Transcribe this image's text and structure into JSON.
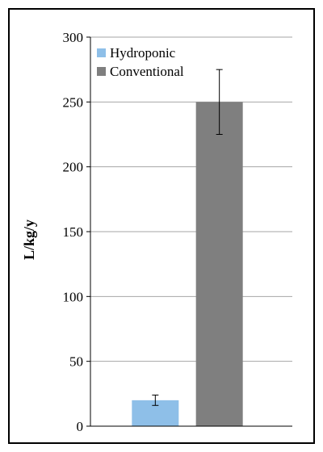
{
  "chart_data": {
    "type": "bar",
    "title": "",
    "xlabel": "",
    "ylabel": "L/kg/y",
    "ylim": [
      0,
      300
    ],
    "yticks": [
      0,
      50,
      100,
      150,
      200,
      250,
      300
    ],
    "grid": true,
    "legend_position": "top-left",
    "series": [
      {
        "name": "Hydroponic",
        "value": 20,
        "error": 4,
        "color": "#8ebfe8"
      },
      {
        "name": "Conventional",
        "value": 250,
        "error": 25,
        "color": "#7f7f7f"
      }
    ]
  }
}
